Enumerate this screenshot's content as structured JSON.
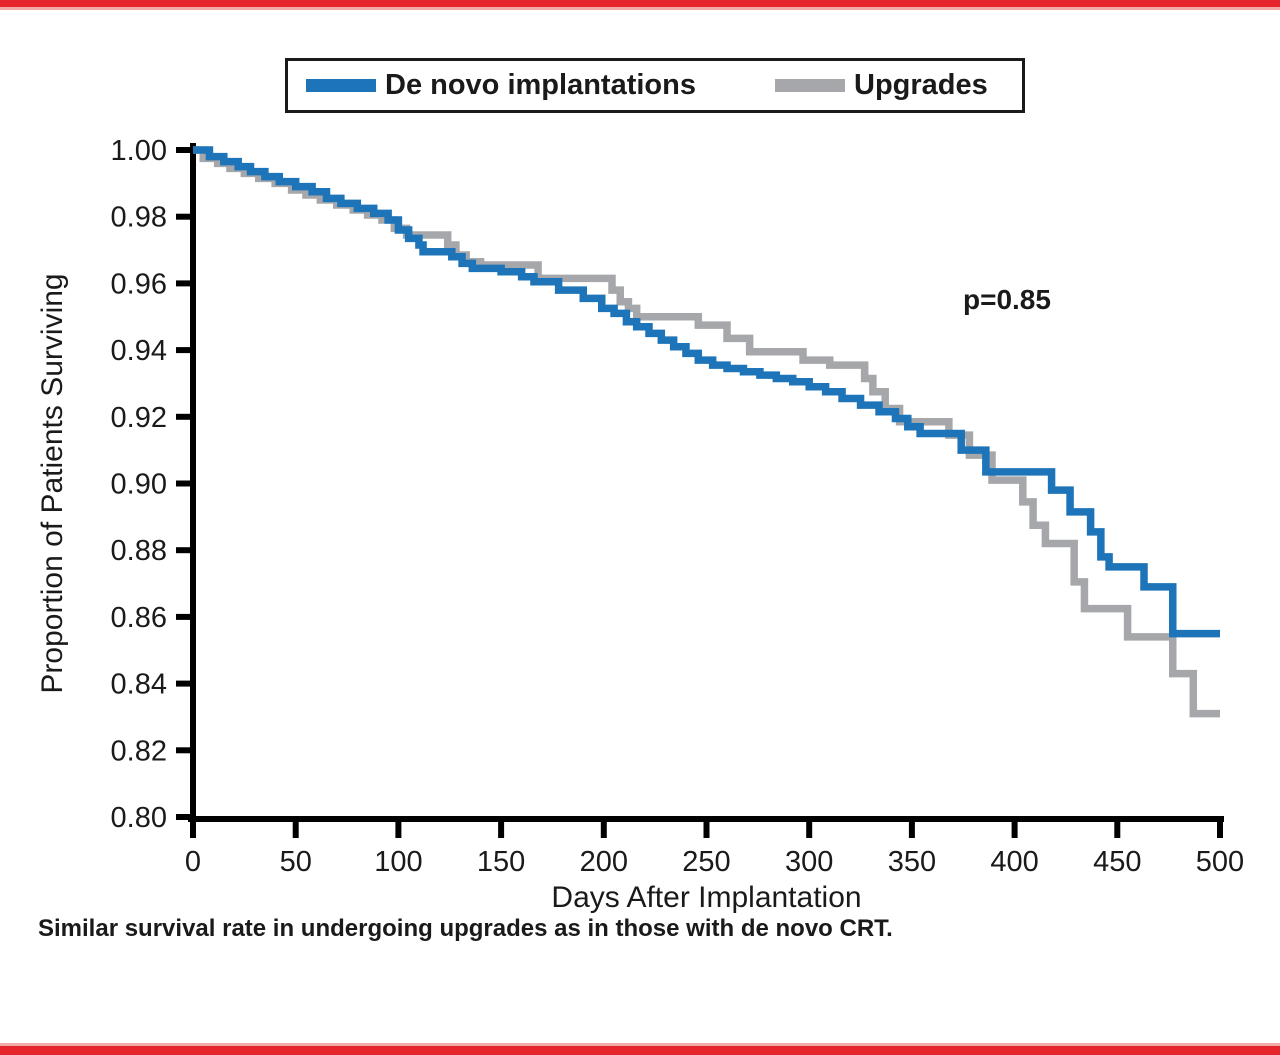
{
  "theme": {
    "background": "#ffffff",
    "top_bar_color": "#e5242b",
    "top_bar_accent": "#f2aba8",
    "bottom_bar_color": "#e5242b",
    "bottom_bar_accent": "#f2aba8",
    "axis_color": "#000000",
    "text_color": "#1a1a1a"
  },
  "caption": "Similar survival rate in undergoing upgrades as in those with de novo CRT.",
  "chart_data": {
    "type": "line",
    "subtype": "kaplan-meier-step",
    "title": "",
    "xlabel": "Days After Implantation",
    "ylabel": "Proportion of Patients Surviving",
    "xlim": [
      0,
      500
    ],
    "ylim": [
      0.8,
      1.0
    ],
    "xticks": [
      0,
      50,
      100,
      150,
      200,
      250,
      300,
      350,
      400,
      450,
      500
    ],
    "yticks": [
      1.0,
      0.98,
      0.96,
      0.94,
      0.92,
      0.9,
      0.88,
      0.86,
      0.84,
      0.82,
      0.8
    ],
    "grid": false,
    "legend_position": "top",
    "annotation": {
      "text": "p=0.85",
      "x_days": 375,
      "y_proportion": 0.953
    },
    "series": [
      {
        "name": "De novo implantations",
        "color": "#1d74b8",
        "points": [
          [
            0,
            1.0
          ],
          [
            8,
            0.998
          ],
          [
            15,
            0.9965
          ],
          [
            22,
            0.995
          ],
          [
            28,
            0.9935
          ],
          [
            35,
            0.992
          ],
          [
            42,
            0.9905
          ],
          [
            50,
            0.989
          ],
          [
            58,
            0.9875
          ],
          [
            65,
            0.9855
          ],
          [
            72,
            0.984
          ],
          [
            80,
            0.9825
          ],
          [
            88,
            0.981
          ],
          [
            95,
            0.979
          ],
          [
            100,
            0.976
          ],
          [
            105,
            0.9735
          ],
          [
            110,
            0.9715
          ],
          [
            112,
            0.9695
          ],
          [
            126,
            0.968
          ],
          [
            131,
            0.966
          ],
          [
            136,
            0.9645
          ],
          [
            150,
            0.9635
          ],
          [
            160,
            0.962
          ],
          [
            166,
            0.9605
          ],
          [
            178,
            0.958
          ],
          [
            190,
            0.9555
          ],
          [
            199,
            0.9525
          ],
          [
            205,
            0.951
          ],
          [
            211,
            0.9485
          ],
          [
            216,
            0.947
          ],
          [
            222,
            0.945
          ],
          [
            228,
            0.943
          ],
          [
            234,
            0.941
          ],
          [
            240,
            0.939
          ],
          [
            246,
            0.937
          ],
          [
            253,
            0.9355
          ],
          [
            260,
            0.9345
          ],
          [
            268,
            0.9335
          ],
          [
            276,
            0.9325
          ],
          [
            284,
            0.9315
          ],
          [
            292,
            0.9305
          ],
          [
            300,
            0.929
          ],
          [
            308,
            0.9275
          ],
          [
            316,
            0.9255
          ],
          [
            325,
            0.9235
          ],
          [
            334,
            0.9215
          ],
          [
            342,
            0.9195
          ],
          [
            348,
            0.917
          ],
          [
            354,
            0.915
          ],
          [
            374,
            0.91
          ],
          [
            386,
            0.9035
          ],
          [
            418,
            0.898
          ],
          [
            427,
            0.8915
          ],
          [
            437,
            0.8855
          ],
          [
            442,
            0.878
          ],
          [
            446,
            0.875
          ],
          [
            463,
            0.869
          ],
          [
            477,
            0.855
          ],
          [
            500,
            0.855
          ]
        ]
      },
      {
        "name": "Upgrades",
        "color": "#a5a7aa",
        "points": [
          [
            0,
            1.0
          ],
          [
            5,
            0.9975
          ],
          [
            12,
            0.996
          ],
          [
            18,
            0.9945
          ],
          [
            25,
            0.993
          ],
          [
            32,
            0.9915
          ],
          [
            40,
            0.99
          ],
          [
            48,
            0.988
          ],
          [
            55,
            0.9865
          ],
          [
            62,
            0.985
          ],
          [
            70,
            0.9835
          ],
          [
            78,
            0.982
          ],
          [
            85,
            0.9805
          ],
          [
            92,
            0.979
          ],
          [
            98,
            0.9765
          ],
          [
            104,
            0.9745
          ],
          [
            124,
            0.9715
          ],
          [
            128,
            0.9685
          ],
          [
            133,
            0.9665
          ],
          [
            140,
            0.9655
          ],
          [
            168,
            0.9615
          ],
          [
            204,
            0.958
          ],
          [
            208,
            0.9545
          ],
          [
            212,
            0.9525
          ],
          [
            216,
            0.95
          ],
          [
            246,
            0.9475
          ],
          [
            260,
            0.9435
          ],
          [
            271,
            0.9395
          ],
          [
            297,
            0.937
          ],
          [
            310,
            0.9355
          ],
          [
            327,
            0.9315
          ],
          [
            331,
            0.9275
          ],
          [
            337,
            0.9225
          ],
          [
            344,
            0.9185
          ],
          [
            368,
            0.9145
          ],
          [
            378,
            0.9085
          ],
          [
            389,
            0.901
          ],
          [
            404,
            0.8945
          ],
          [
            409,
            0.8875
          ],
          [
            415,
            0.882
          ],
          [
            429,
            0.8705
          ],
          [
            434,
            0.8625
          ],
          [
            455,
            0.854
          ],
          [
            477,
            0.843
          ],
          [
            487,
            0.831
          ],
          [
            500,
            0.831
          ]
        ]
      }
    ]
  }
}
